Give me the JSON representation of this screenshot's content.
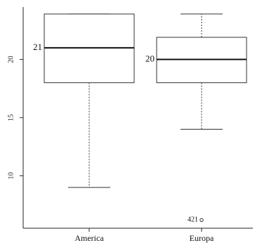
{
  "chart_data": {
    "type": "box",
    "categories": [
      "America",
      "Europa"
    ],
    "boxes": [
      {
        "name": "America",
        "min": 9,
        "q1": 18,
        "median": 21,
        "q3": 23.9,
        "max": 23.9,
        "median_label": "21"
      },
      {
        "name": "Europa",
        "min": 14,
        "q1": 18,
        "median": 20,
        "q3": 21.9,
        "max": 23.9,
        "median_label": "20",
        "outliers": [
          {
            "value": 6.2,
            "label": "421"
          }
        ]
      }
    ],
    "yticks": [
      10,
      15,
      20
    ],
    "ylim": [
      5.5,
      24.5
    ],
    "grid": false
  },
  "colors": {
    "box_stroke": "#333333",
    "median": "#111111"
  }
}
